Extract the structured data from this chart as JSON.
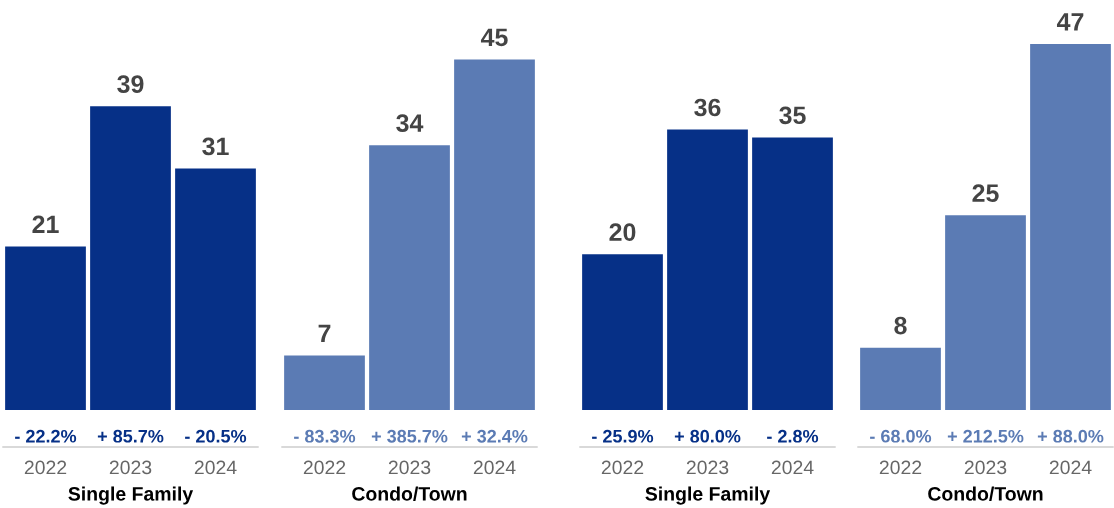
{
  "chart_data": [
    {
      "type": "bar",
      "xlabel": "Single Family",
      "categories": [
        "2022",
        "2023",
        "2024"
      ],
      "values": [
        21,
        39,
        31
      ],
      "color": "#063087",
      "data_labels": true,
      "tick_labels": "x",
      "annotations": [
        "- 22.2%",
        "+ 85.7%",
        "- 20.5%"
      ]
    },
    {
      "type": "bar",
      "xlabel": "Condo/Town",
      "categories": [
        "2022",
        "2023",
        "2024"
      ],
      "values": [
        7,
        34,
        45
      ],
      "color": "#5b7bb4",
      "data_labels": true,
      "tick_labels": "x",
      "annotations": [
        "- 83.3%",
        "+ 385.7%",
        "+ 32.4%"
      ]
    },
    {
      "type": "bar",
      "xlabel": "Single Family",
      "categories": [
        "2022",
        "2023",
        "2024"
      ],
      "values": [
        20,
        36,
        35
      ],
      "color": "#063087",
      "data_labels": true,
      "tick_labels": "x",
      "annotations": [
        "- 25.9%",
        "+ 80.0%",
        "- 2.8%"
      ]
    },
    {
      "type": "bar",
      "xlabel": "Condo/Town",
      "categories": [
        "2022",
        "2023",
        "2024"
      ],
      "values": [
        8,
        25,
        47
      ],
      "color": "#5b7bb4",
      "data_labels": true,
      "tick_labels": "x",
      "annotations": [
        "- 68.0%",
        "+ 212.5%",
        "+ 88.0%"
      ]
    }
  ]
}
